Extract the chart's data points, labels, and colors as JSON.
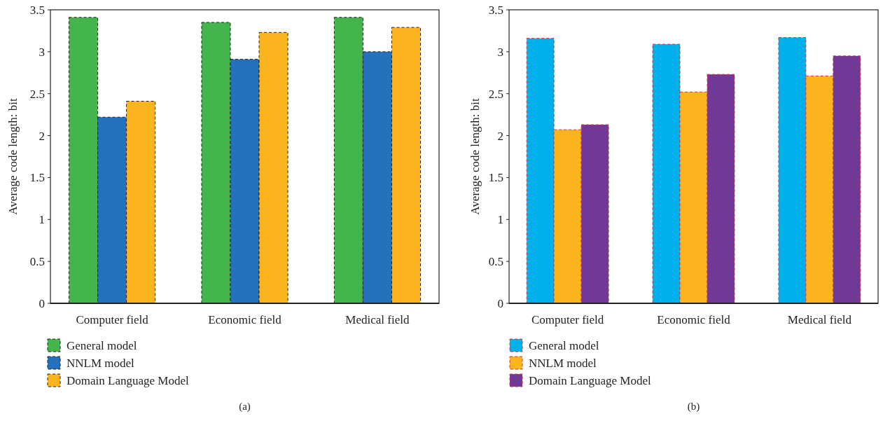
{
  "chart_data": [
    {
      "type": "bar",
      "ylabel": "Average code length: bit",
      "categories": [
        "Computer field",
        "Economic field",
        "Medical field"
      ],
      "series": [
        {
          "name": "General model",
          "color": "#43b54c",
          "values": [
            3.41,
            3.35,
            3.41
          ]
        },
        {
          "name": "NNLM model",
          "color": "#2472bb",
          "values": [
            2.22,
            2.91,
            3.0
          ]
        },
        {
          "name": "Domain Language Model",
          "color": "#fbb41d",
          "values": [
            2.41,
            3.23,
            3.29
          ]
        }
      ],
      "ylim": [
        0,
        3.5
      ],
      "yticks": [
        0,
        0.5,
        1,
        1.5,
        2,
        2.5,
        3,
        3.5
      ],
      "grid": false,
      "legend": "bottom left",
      "annotations": [
        "(a)"
      ]
    },
    {
      "type": "bar",
      "ylabel": "Average code length: bit",
      "categories": [
        "Computer field",
        "Economic field",
        "Medical field"
      ],
      "series": [
        {
          "name": "General model",
          "color": "#00b0ec",
          "values": [
            3.16,
            3.09,
            3.17
          ]
        },
        {
          "name": "NNLM model",
          "color": "#fbb41d",
          "values": [
            2.07,
            2.52,
            2.71
          ]
        },
        {
          "name": "Domain Language Model",
          "color": "#703996",
          "values": [
            2.13,
            2.73,
            2.95
          ]
        }
      ],
      "ylim": [
        0,
        3.5
      ],
      "yticks": [
        0,
        0.5,
        1,
        1.5,
        2,
        2.5,
        3,
        3.5
      ],
      "grid": false,
      "legend": "bottom left",
      "annotations": [
        "(b)"
      ]
    }
  ]
}
